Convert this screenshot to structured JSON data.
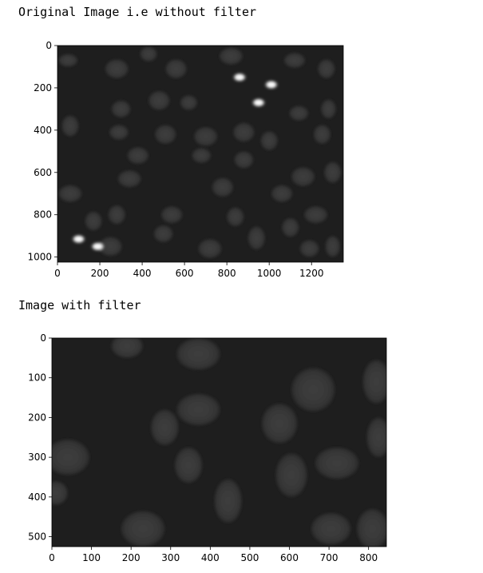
{
  "output_cell": {
    "caption_1": "Original Image i.e without filter",
    "caption_2": "Image with filter"
  },
  "colors": {
    "background": "#ffffff",
    "image_bg": "#1e1e1e",
    "cell_fill": "#3a3a3a",
    "bright_cell": "#ffffff"
  },
  "chart_data": [
    {
      "type": "image",
      "title": "",
      "xlabel": "",
      "ylabel": "",
      "xlim": [
        0,
        1350
      ],
      "ylim": [
        1024,
        0
      ],
      "xticks": [
        0,
        200,
        400,
        600,
        800,
        1000,
        1200
      ],
      "yticks": [
        0,
        200,
        400,
        600,
        800,
        1000
      ],
      "content": "grayscale micrograph of cell nuclei on dark background, several saturated bright nuclei",
      "bright_spots": [
        {
          "x": 860,
          "y": 150
        },
        {
          "x": 1010,
          "y": 185
        },
        {
          "x": 950,
          "y": 270
        },
        {
          "x": 100,
          "y": 915
        },
        {
          "x": 190,
          "y": 950
        }
      ],
      "dim_cells": [
        {
          "x": 50,
          "y": 70,
          "rx": 45,
          "ry": 30
        },
        {
          "x": 280,
          "y": 110,
          "rx": 55,
          "ry": 45
        },
        {
          "x": 430,
          "y": 40,
          "rx": 40,
          "ry": 35
        },
        {
          "x": 560,
          "y": 110,
          "rx": 50,
          "ry": 45
        },
        {
          "x": 820,
          "y": 50,
          "rx": 55,
          "ry": 40
        },
        {
          "x": 1120,
          "y": 70,
          "rx": 50,
          "ry": 35
        },
        {
          "x": 1270,
          "y": 110,
          "rx": 40,
          "ry": 45
        },
        {
          "x": 480,
          "y": 260,
          "rx": 50,
          "ry": 45
        },
        {
          "x": 620,
          "y": 270,
          "rx": 40,
          "ry": 35
        },
        {
          "x": 300,
          "y": 300,
          "rx": 45,
          "ry": 40
        },
        {
          "x": 1140,
          "y": 320,
          "rx": 45,
          "ry": 35
        },
        {
          "x": 1280,
          "y": 300,
          "rx": 35,
          "ry": 45
        },
        {
          "x": 60,
          "y": 380,
          "rx": 40,
          "ry": 50
        },
        {
          "x": 290,
          "y": 410,
          "rx": 45,
          "ry": 35
        },
        {
          "x": 510,
          "y": 420,
          "rx": 50,
          "ry": 45
        },
        {
          "x": 700,
          "y": 430,
          "rx": 55,
          "ry": 45
        },
        {
          "x": 880,
          "y": 410,
          "rx": 50,
          "ry": 45
        },
        {
          "x": 1000,
          "y": 450,
          "rx": 40,
          "ry": 45
        },
        {
          "x": 1250,
          "y": 420,
          "rx": 40,
          "ry": 45
        },
        {
          "x": 380,
          "y": 520,
          "rx": 50,
          "ry": 40
        },
        {
          "x": 680,
          "y": 520,
          "rx": 45,
          "ry": 35
        },
        {
          "x": 880,
          "y": 540,
          "rx": 45,
          "ry": 40
        },
        {
          "x": 1160,
          "y": 620,
          "rx": 55,
          "ry": 45
        },
        {
          "x": 1300,
          "y": 600,
          "rx": 40,
          "ry": 50
        },
        {
          "x": 340,
          "y": 630,
          "rx": 55,
          "ry": 40
        },
        {
          "x": 60,
          "y": 700,
          "rx": 55,
          "ry": 40
        },
        {
          "x": 780,
          "y": 670,
          "rx": 50,
          "ry": 45
        },
        {
          "x": 1060,
          "y": 700,
          "rx": 50,
          "ry": 40
        },
        {
          "x": 280,
          "y": 800,
          "rx": 40,
          "ry": 45
        },
        {
          "x": 540,
          "y": 800,
          "rx": 50,
          "ry": 40
        },
        {
          "x": 840,
          "y": 810,
          "rx": 40,
          "ry": 45
        },
        {
          "x": 1220,
          "y": 800,
          "rx": 55,
          "ry": 40
        },
        {
          "x": 170,
          "y": 830,
          "rx": 40,
          "ry": 45
        },
        {
          "x": 500,
          "y": 890,
          "rx": 45,
          "ry": 40
        },
        {
          "x": 940,
          "y": 910,
          "rx": 40,
          "ry": 55
        },
        {
          "x": 1100,
          "y": 860,
          "rx": 40,
          "ry": 45
        },
        {
          "x": 250,
          "y": 950,
          "rx": 55,
          "ry": 45
        },
        {
          "x": 720,
          "y": 960,
          "rx": 55,
          "ry": 45
        },
        {
          "x": 1190,
          "y": 960,
          "rx": 45,
          "ry": 40
        },
        {
          "x": 1300,
          "y": 950,
          "rx": 35,
          "ry": 50
        }
      ]
    },
    {
      "type": "image",
      "title": "",
      "xlabel": "",
      "ylabel": "",
      "xlim": [
        0,
        845
      ],
      "ylim": [
        525,
        0
      ],
      "xticks": [
        0,
        100,
        200,
        300,
        400,
        500,
        600,
        700,
        800
      ],
      "yticks": [
        0,
        100,
        200,
        300,
        400,
        500
      ],
      "content": "cropped grayscale micrograph of cell nuclei, no saturated spots",
      "dim_cells": [
        {
          "x": 190,
          "y": 20,
          "rx": 40,
          "ry": 30
        },
        {
          "x": 370,
          "y": 40,
          "rx": 55,
          "ry": 40
        },
        {
          "x": 660,
          "y": 130,
          "rx": 55,
          "ry": 55
        },
        {
          "x": 820,
          "y": 110,
          "rx": 35,
          "ry": 55
        },
        {
          "x": 370,
          "y": 180,
          "rx": 55,
          "ry": 40
        },
        {
          "x": 575,
          "y": 215,
          "rx": 45,
          "ry": 50
        },
        {
          "x": 285,
          "y": 225,
          "rx": 35,
          "ry": 45
        },
        {
          "x": 825,
          "y": 250,
          "rx": 30,
          "ry": 50
        },
        {
          "x": 40,
          "y": 300,
          "rx": 55,
          "ry": 45
        },
        {
          "x": 345,
          "y": 320,
          "rx": 35,
          "ry": 45
        },
        {
          "x": 605,
          "y": 345,
          "rx": 40,
          "ry": 55
        },
        {
          "x": 720,
          "y": 315,
          "rx": 55,
          "ry": 40
        },
        {
          "x": 10,
          "y": 390,
          "rx": 30,
          "ry": 30
        },
        {
          "x": 445,
          "y": 410,
          "rx": 35,
          "ry": 55
        },
        {
          "x": 230,
          "y": 480,
          "rx": 55,
          "ry": 45
        },
        {
          "x": 705,
          "y": 480,
          "rx": 50,
          "ry": 40
        },
        {
          "x": 810,
          "y": 480,
          "rx": 40,
          "ry": 50
        }
      ]
    }
  ]
}
